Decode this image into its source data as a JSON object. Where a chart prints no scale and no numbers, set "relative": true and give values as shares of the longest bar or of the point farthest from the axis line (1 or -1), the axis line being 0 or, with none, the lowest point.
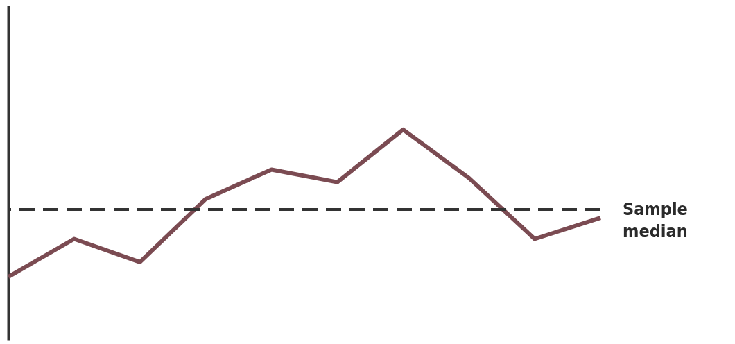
{
  "chart_data": {
    "type": "line",
    "relative": true,
    "categories": [
      null,
      null,
      null,
      null,
      null,
      null,
      null,
      null,
      null,
      null
    ],
    "series": [
      {
        "color": "#7b4b52",
        "values": [
          0.3,
          0.48,
          0.37,
          0.67,
          0.81,
          0.75,
          1,
          0.77,
          0.48,
          0.58
        ]
      }
    ],
    "ref_lines": [
      {
        "axis": "y",
        "value": 0.62,
        "label": "Sample median",
        "color": "#333333",
        "line_style": "dashed"
      }
    ],
    "marker": "none",
    "line_style": "solid"
  }
}
